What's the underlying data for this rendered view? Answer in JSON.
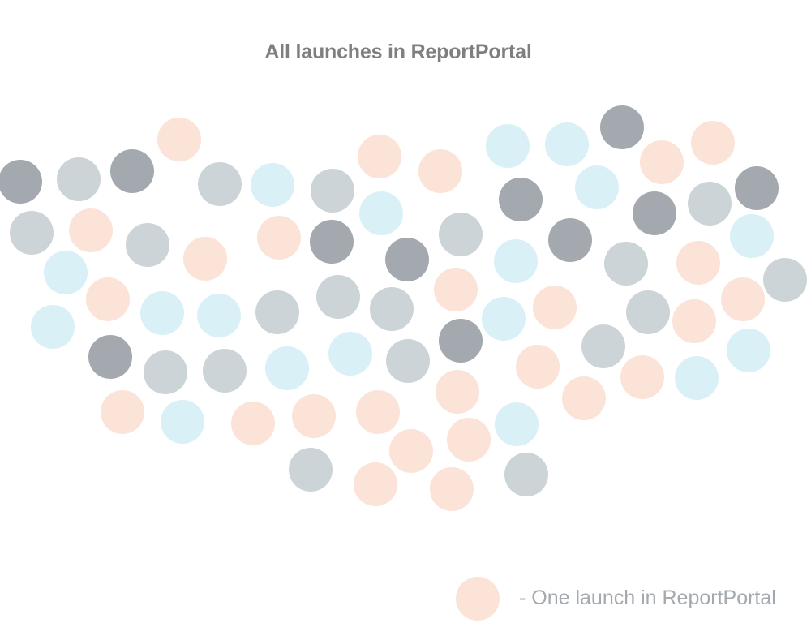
{
  "title": "All launches in ReportPortal",
  "legend": {
    "label": "- One launch in ReportPortal",
    "color": "#fbe3d7"
  },
  "palette": {
    "dark": "#a3a9ae",
    "gray": "#ccd4d8",
    "blue": "#d9f0f6",
    "peach": "#fbe3d7"
  },
  "launch_count": 80
}
